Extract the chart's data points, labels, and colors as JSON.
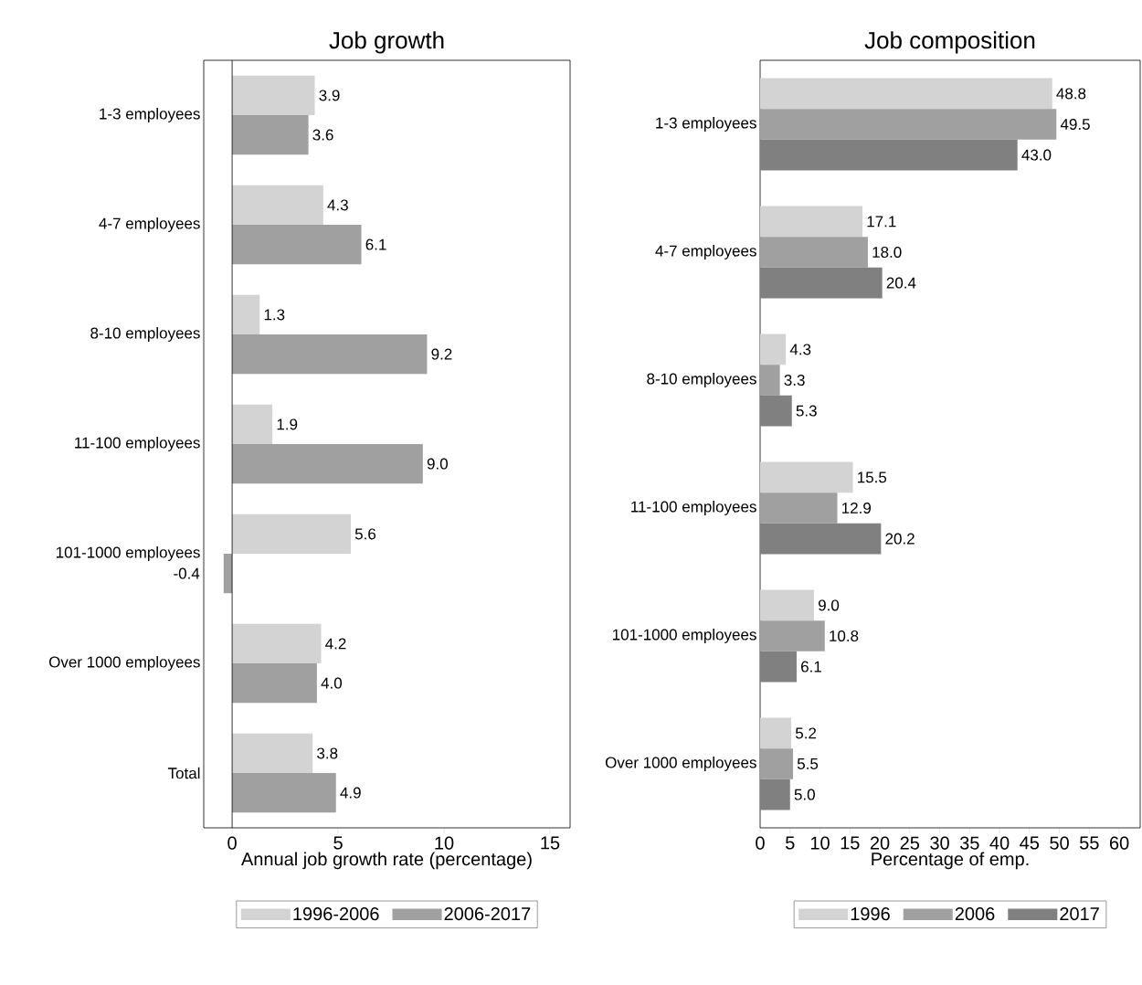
{
  "chart_data": [
    {
      "type": "bar",
      "orientation": "horizontal",
      "title": "Job growth",
      "xlabel": "Annual job growth rate (percentage)",
      "categories": [
        "1-3 employees",
        "4-7 employees",
        "8-10 employees",
        "11-100 employees",
        "101-1000 employees",
        "Over 1000 employees",
        "Total"
      ],
      "series": [
        {
          "name": "1996-2006",
          "color": "#d3d3d3",
          "values": [
            3.9,
            4.3,
            1.3,
            1.9,
            5.6,
            4.2,
            3.8
          ],
          "value_labels": [
            "3.9",
            "4.3",
            "1.3",
            "1.9",
            "5.6",
            "4.2",
            "3.8"
          ]
        },
        {
          "name": "2006-2017",
          "color": "#a0a0a0",
          "values": [
            3.6,
            6.1,
            9.2,
            9.0,
            -0.4,
            4.0,
            4.9
          ],
          "value_labels": [
            "3.6",
            "6.1",
            "9.2",
            "9.0",
            "-0.4",
            "4.0",
            "4.9"
          ]
        }
      ],
      "xlim": [
        -1.34,
        15.95
      ],
      "xticks": [
        0,
        5,
        10,
        15
      ],
      "legend": "bottom",
      "ref_lines": [
        {
          "axis": "x",
          "value": 0
        }
      ]
    },
    {
      "type": "bar",
      "orientation": "horizontal",
      "title": "Job composition",
      "xlabel": "Percentage of emp.",
      "categories": [
        "1-3 employees",
        "4-7 employees",
        "8-10 employees",
        "11-100 employees",
        "101-1000 employees",
        "Over 1000 employees"
      ],
      "series": [
        {
          "name": "1996",
          "color": "#d3d3d3",
          "values": [
            48.8,
            17.1,
            4.3,
            15.5,
            9.0,
            5.2
          ],
          "value_labels": [
            "48.8",
            "17.1",
            "4.3",
            "15.5",
            "9.0",
            "5.2"
          ]
        },
        {
          "name": "2006",
          "color": "#a0a0a0",
          "values": [
            49.5,
            18.0,
            3.3,
            12.9,
            10.8,
            5.5
          ],
          "value_labels": [
            "49.5",
            "18.0",
            "3.3",
            "12.9",
            "10.8",
            "5.5"
          ]
        },
        {
          "name": "2017",
          "color": "#808080",
          "values": [
            43.0,
            20.4,
            5.3,
            20.2,
            6.1,
            5.0
          ],
          "value_labels": [
            "43.0",
            "20.4",
            "5.3",
            "20.2",
            "6.1",
            "5.0"
          ]
        }
      ],
      "xlim": [
        0,
        63.5
      ],
      "xticks": [
        0,
        5,
        10,
        15,
        20,
        25,
        30,
        35,
        40,
        45,
        50,
        55,
        60
      ],
      "legend": "bottom"
    }
  ]
}
